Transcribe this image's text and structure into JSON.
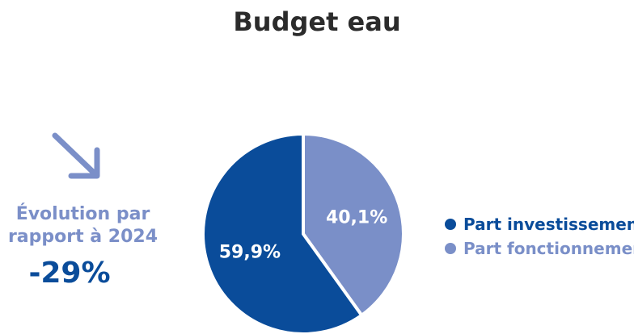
{
  "chart_data": {
    "type": "pie",
    "title": "Budget eau",
    "slices": [
      {
        "name": "Part investissement",
        "value": 59.9,
        "label": "59,9%",
        "color": "#0a4c9a"
      },
      {
        "name": "Part fonctionnement",
        "value": 40.1,
        "label": "40,1%",
        "color": "#7a8fc8"
      }
    ],
    "legend_position": "right"
  },
  "evolution": {
    "label_line1": "Évolution par",
    "label_line2": "rapport à 2024",
    "value": "-29%",
    "arrow_icon": "arrow-down-right-icon"
  }
}
